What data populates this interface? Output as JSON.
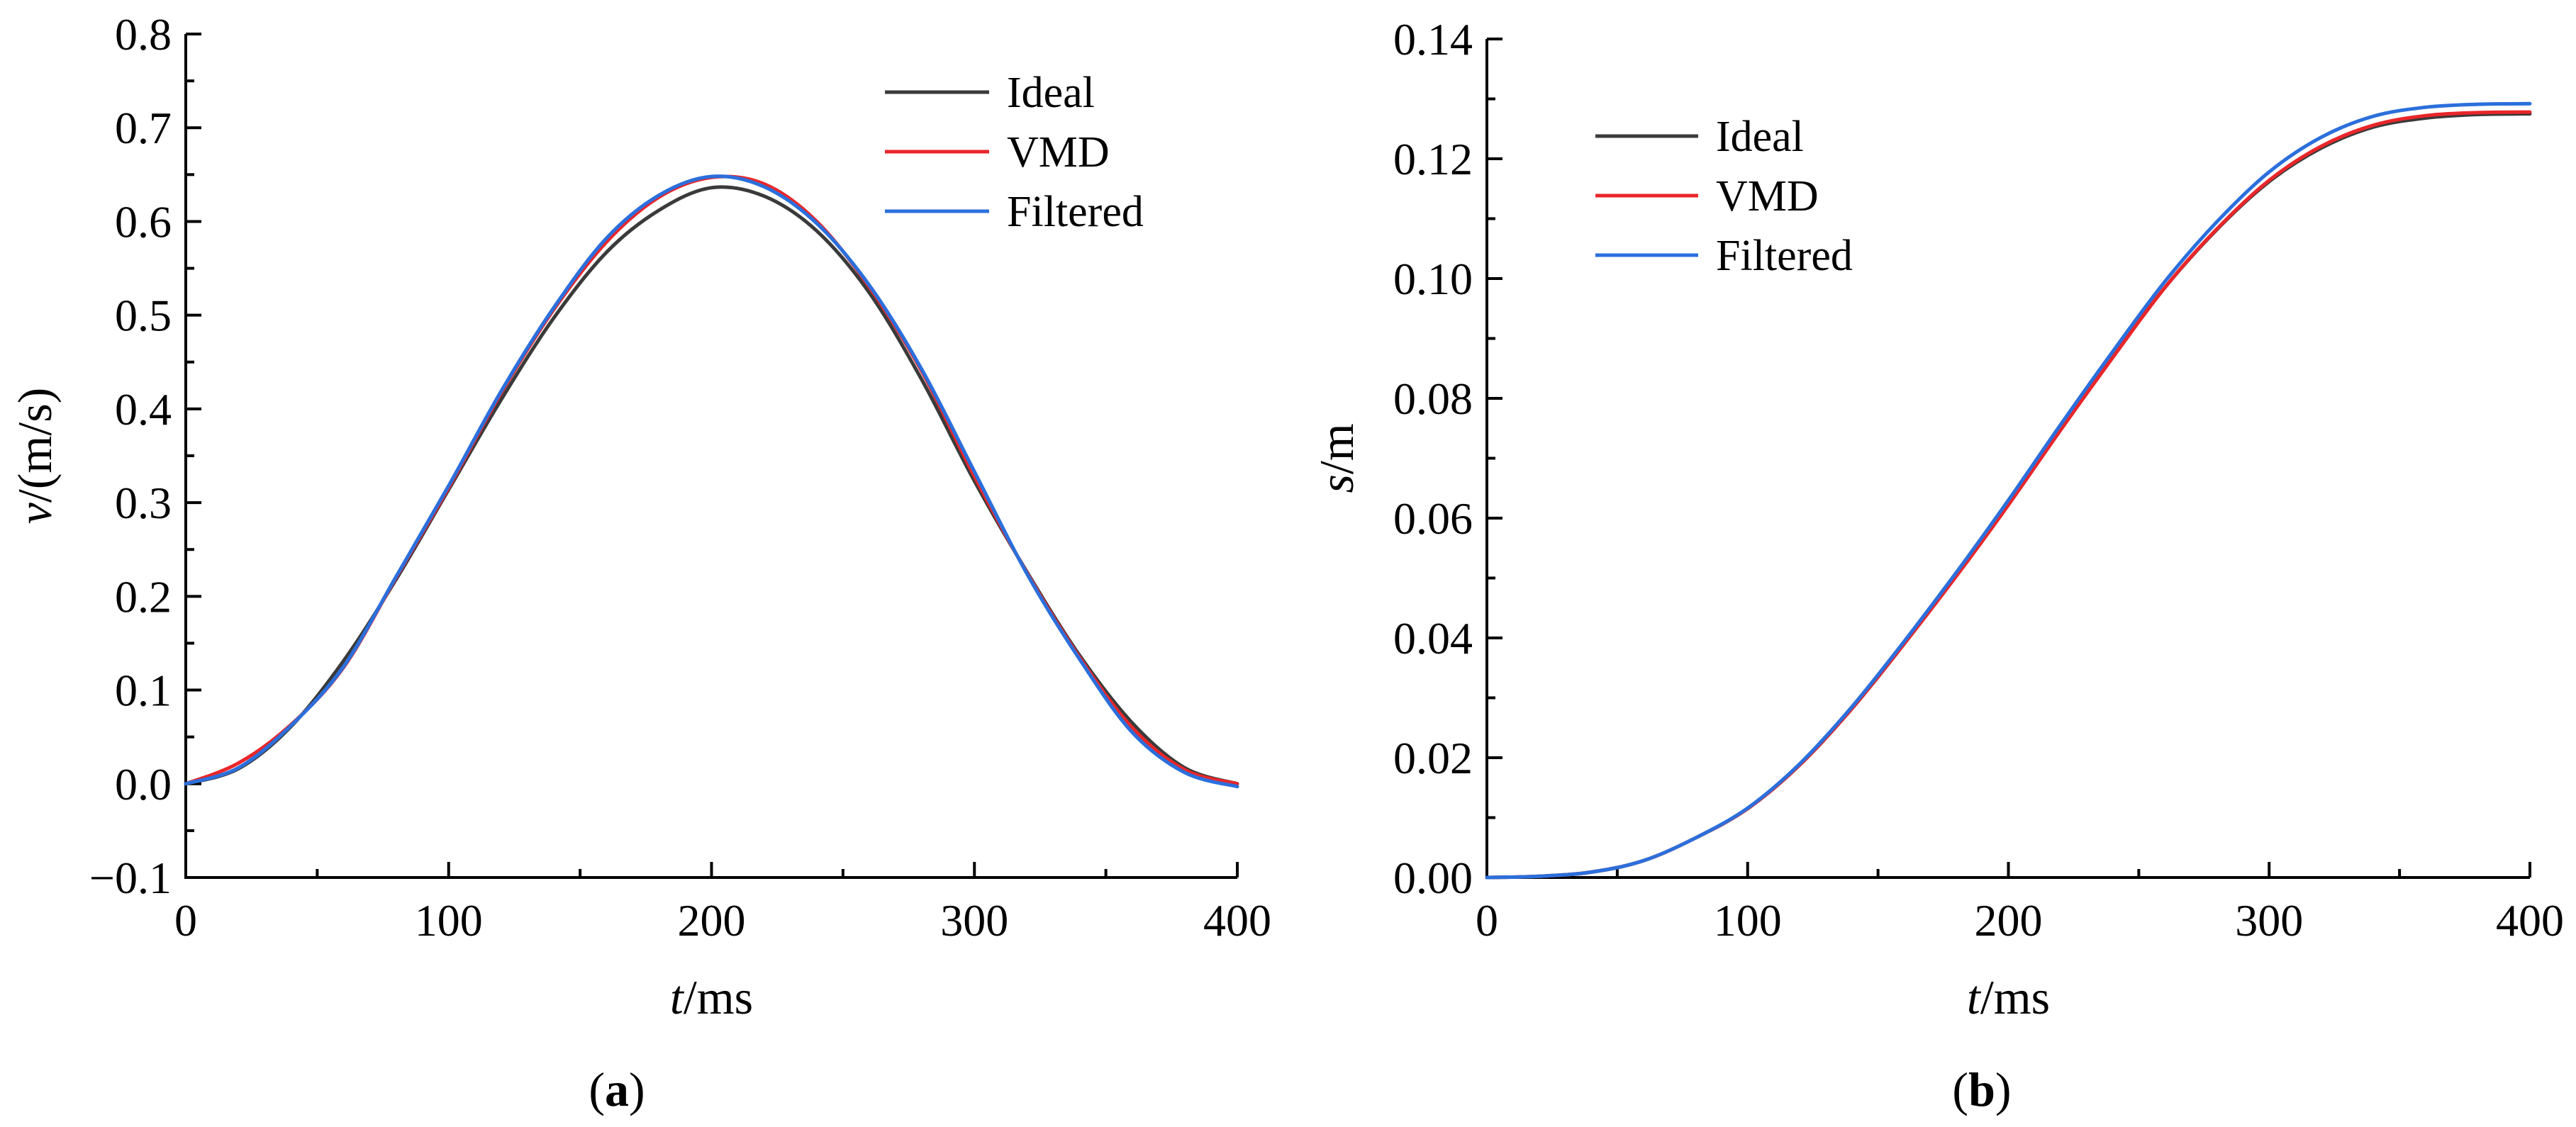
{
  "colors": {
    "Ideal": "#3a3a3a",
    "VMD": "#e8262a",
    "Filtered": "#2b6fdc"
  },
  "chart_data": [
    {
      "type": "line",
      "panel_label": "(a)",
      "xlabel_symbol": "t",
      "xlabel_unit": "/ms",
      "ylabel_symbol": "v",
      "ylabel_unit": "/(m/s)",
      "xlim": [
        0,
        400
      ],
      "ylim": [
        -0.1,
        0.8
      ],
      "xticks": [
        0,
        100,
        200,
        300,
        400
      ],
      "xtick_labels": [
        "0",
        "100",
        "200",
        "300",
        "400"
      ],
      "yticks": [
        -0.1,
        0.0,
        0.1,
        0.2,
        0.3,
        0.4,
        0.5,
        0.6,
        0.7,
        0.8
      ],
      "ytick_labels": [
        "−0.1",
        "0.0",
        "0.1",
        "0.2",
        "0.3",
        "0.4",
        "0.5",
        "0.6",
        "0.7",
        "0.8"
      ],
      "legend_position": "top-right",
      "legend": [
        "Ideal",
        "VMD",
        "Filtered"
      ],
      "x": [
        0,
        20,
        40,
        60,
        80,
        100,
        120,
        140,
        160,
        180,
        200,
        220,
        240,
        260,
        280,
        300,
        320,
        340,
        360,
        380,
        400
      ],
      "series": [
        {
          "name": "Ideal",
          "values": [
            0.0,
            0.016,
            0.061,
            0.131,
            0.218,
            0.314,
            0.41,
            0.497,
            0.567,
            0.612,
            0.636,
            0.627,
            0.59,
            0.524,
            0.431,
            0.323,
            0.226,
            0.137,
            0.065,
            0.017,
            0.0
          ]
        },
        {
          "name": "VMD",
          "values": [
            0.0,
            0.022,
            0.063,
            0.124,
            0.22,
            0.316,
            0.417,
            0.506,
            0.578,
            0.626,
            0.647,
            0.64,
            0.6,
            0.53,
            0.44,
            0.328,
            0.225,
            0.135,
            0.06,
            0.015,
            0.0
          ]
        },
        {
          "name": "Filtered",
          "values": [
            0.0,
            0.017,
            0.062,
            0.125,
            0.221,
            0.318,
            0.419,
            0.508,
            0.582,
            0.628,
            0.648,
            0.637,
            0.598,
            0.532,
            0.442,
            0.333,
            0.224,
            0.133,
            0.055,
            0.012,
            -0.003
          ]
        }
      ]
    },
    {
      "type": "line",
      "panel_label": "(b)",
      "xlabel_symbol": "t",
      "xlabel_unit": "/ms",
      "ylabel_symbol": "s",
      "ylabel_unit": "/m",
      "xlim": [
        0,
        400
      ],
      "ylim": [
        0,
        0.14
      ],
      "xticks": [
        0,
        100,
        200,
        300,
        400
      ],
      "xtick_labels": [
        "0",
        "100",
        "200",
        "300",
        "400"
      ],
      "yticks": [
        0.0,
        0.02,
        0.04,
        0.06,
        0.08,
        0.1,
        0.12,
        0.14
      ],
      "ytick_labels": [
        "0.00",
        "0.02",
        "0.04",
        "0.06",
        "0.08",
        "0.10",
        "0.12",
        "0.14"
      ],
      "legend_position": "top-left",
      "legend": [
        "Ideal",
        "VMD",
        "Filtered"
      ],
      "x": [
        0,
        20,
        40,
        60,
        80,
        100,
        120,
        140,
        160,
        180,
        200,
        220,
        240,
        260,
        280,
        300,
        320,
        340,
        360,
        380,
        400
      ],
      "series": [
        {
          "name": "Ideal",
          "values": [
            0.0,
            0.0002,
            0.0009,
            0.0028,
            0.0066,
            0.0115,
            0.0188,
            0.0282,
            0.039,
            0.0505,
            0.0625,
            0.075,
            0.087,
            0.0985,
            0.1082,
            0.1162,
            0.1218,
            0.1253,
            0.1268,
            0.1274,
            0.1275
          ]
        },
        {
          "name": "VMD",
          "values": [
            0.0,
            0.0002,
            0.0009,
            0.0028,
            0.0066,
            0.0115,
            0.0188,
            0.0282,
            0.039,
            0.0503,
            0.0622,
            0.0747,
            0.0868,
            0.0985,
            0.1083,
            0.1164,
            0.1221,
            0.1256,
            0.1272,
            0.1277,
            0.1278
          ]
        },
        {
          "name": "Filtered",
          "values": [
            0.0,
            0.0002,
            0.0009,
            0.0028,
            0.0066,
            0.0116,
            0.019,
            0.0285,
            0.0394,
            0.0509,
            0.063,
            0.0756,
            0.0878,
            0.0995,
            0.1095,
            0.1178,
            0.1236,
            0.1271,
            0.1286,
            0.1291,
            0.1292
          ]
        }
      ]
    }
  ]
}
